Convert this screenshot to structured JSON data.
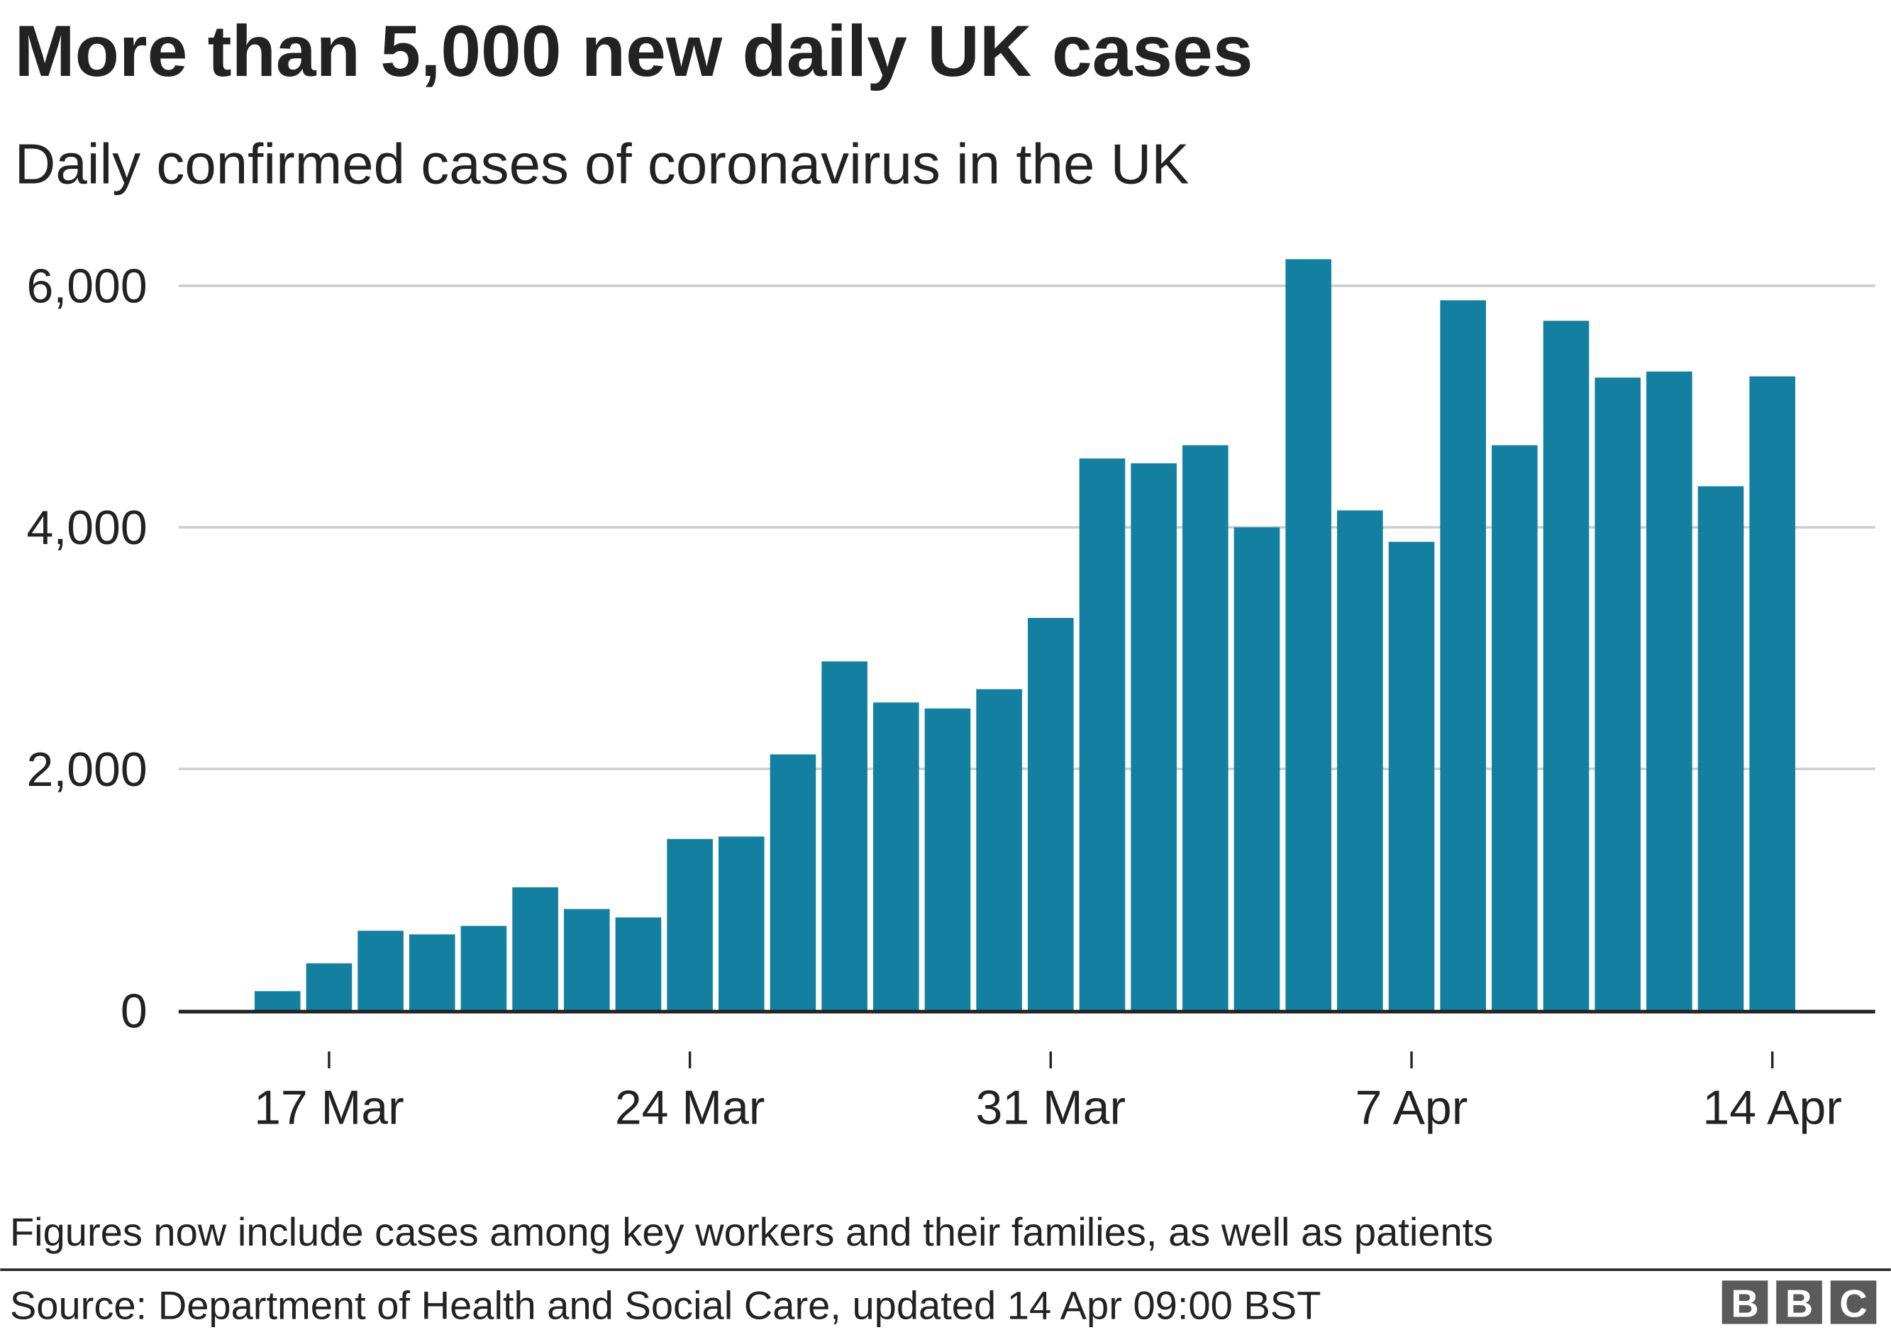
{
  "chart_data": {
    "type": "bar",
    "title": "More than 5,000 new daily UK cases",
    "subtitle": "Daily confirmed cases of coronavirus in the UK",
    "xlabel": "",
    "ylabel": "",
    "ylim": [
      0,
      6000
    ],
    "yticks": [
      0,
      2000,
      4000,
      6000
    ],
    "ytick_labels": [
      "0",
      "2,000",
      "4,000",
      "6,000"
    ],
    "xtick_labels": [
      "17 Mar",
      "24 Mar",
      "31 Mar",
      "7 Apr",
      "14 Apr"
    ],
    "xtick_indices": [
      1,
      8,
      15,
      22,
      29
    ],
    "grid": true,
    "bar_color": "#1380A1",
    "categories": [
      "16 Mar",
      "17 Mar",
      "18 Mar",
      "19 Mar",
      "20 Mar",
      "21 Mar",
      "22 Mar",
      "23 Mar",
      "24 Mar",
      "25 Mar",
      "26 Mar",
      "27 Mar",
      "28 Mar",
      "29 Mar",
      "30 Mar",
      "31 Mar",
      "1 Apr",
      "2 Apr",
      "3 Apr",
      "4 Apr",
      "5 Apr",
      "6 Apr",
      "7 Apr",
      "8 Apr",
      "9 Apr",
      "10 Apr",
      "11 Apr",
      "12 Apr",
      "13 Apr",
      "14 Apr"
    ],
    "values": [
      160,
      390,
      660,
      630,
      700,
      1020,
      840,
      770,
      1420,
      1440,
      2120,
      2890,
      2550,
      2500,
      2660,
      3250,
      4570,
      4530,
      4680,
      4000,
      6220,
      4140,
      3880,
      5880,
      4680,
      5710,
      5240,
      5290,
      4340,
      5250
    ],
    "footnote": "Figures now include cases among key workers and their families, as well as patients",
    "source": "Source: Department of Health and Social Care, updated 14 Apr 09:00 BST",
    "logo": "BBC"
  }
}
